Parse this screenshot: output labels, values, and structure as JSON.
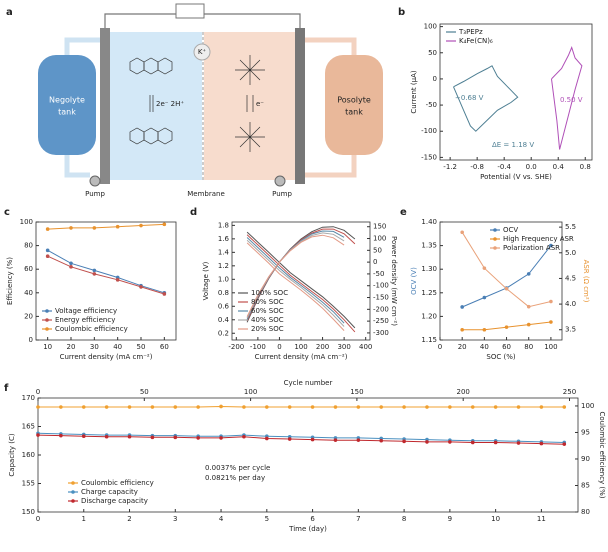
{
  "diagram": {
    "panel": "a",
    "negolyte_tank": [
      "Negolyte",
      "tank"
    ],
    "posolyte_tank": [
      "Posolyte",
      "tank"
    ],
    "pumps": [
      "Pump",
      "Pump"
    ],
    "membrane": "Membrane",
    "ion": "K⁺",
    "left_reaction": "2e⁻ 2H⁺",
    "right_reaction": "e⁻"
  },
  "chart_data": [
    {
      "type": "line",
      "panel": "b",
      "x_label": "Potential (V vs. SHE)",
      "y_label": "Current (μA)",
      "xlim": [
        -1.35,
        0.9
      ],
      "xticks": [
        -1.2,
        -0.8,
        -0.4,
        {
          "value": 0,
          "label": "0.0"
        },
        0.4,
        0.8
      ],
      "ylim": [
        -155,
        105
      ],
      "yticks": [
        -150,
        -100,
        -50,
        0,
        50,
        100
      ],
      "legend": "upper left",
      "series": [
        {
          "name": "T₃PEPz",
          "color": "#4e7f93",
          "x": [
            -1.15,
            -1.0,
            -0.9,
            -0.82,
            -0.7,
            -0.5,
            -0.3,
            -0.2,
            -0.35,
            -0.5,
            -0.58,
            -0.65,
            -0.8,
            -1.0,
            -1.15
          ],
          "values": [
            -15,
            -60,
            -90,
            -100,
            -85,
            -60,
            -45,
            -35,
            -15,
            5,
            25,
            20,
            10,
            -5,
            -15
          ]
        },
        {
          "name": "K₄Fe(CN)₆",
          "color": "#b050b8",
          "x": [
            0.3,
            0.45,
            0.55,
            0.6,
            0.65,
            0.75,
            0.65,
            0.55,
            0.45,
            0.42,
            0.38,
            0.3
          ],
          "values": [
            0,
            20,
            45,
            60,
            40,
            25,
            -20,
            -70,
            -120,
            -135,
            -80,
            0
          ]
        }
      ],
      "annotations": [
        "−0.68 V",
        "0.50 V",
        "ΔE = 1.18 V"
      ]
    },
    {
      "type": "line",
      "panel": "c",
      "x_label": "Current density (mA cm⁻²)",
      "y_label": "Efficiency (%)",
      "x": [
        10,
        20,
        30,
        40,
        50,
        60
      ],
      "xlim": [
        5,
        65
      ],
      "xticks": [
        10,
        20,
        30,
        40,
        50,
        60
      ],
      "ylim": [
        0,
        100
      ],
      "yticks": [
        0,
        20,
        40,
        60,
        80,
        100
      ],
      "legend": "lower left",
      "marker": true,
      "series": [
        {
          "name": "Voltage efficiency",
          "color": "#4a7fb5",
          "values": [
            76,
            65,
            59,
            53,
            46,
            40
          ]
        },
        {
          "name": "Energy efficiency",
          "color": "#c0504d",
          "values": [
            71,
            62,
            56,
            51,
            45,
            39
          ]
        },
        {
          "name": "Coulombic efficiency",
          "color": "#e8922e",
          "values": [
            94,
            95,
            95,
            96,
            97,
            98
          ]
        }
      ]
    },
    {
      "type": "line",
      "panel": "d",
      "x_label": "Current density (mA cm⁻²)",
      "y_label": "Voltage (V)",
      "y2_label": "Power density (mW cm⁻²)",
      "x": [
        -150,
        -100,
        -50,
        0,
        50,
        100,
        150,
        200,
        250,
        300,
        350
      ],
      "xlim": [
        -220,
        420
      ],
      "xticks": [
        -200,
        -100,
        0,
        100,
        200,
        300,
        400
      ],
      "ylim": [
        0.1,
        1.85
      ],
      "yticks": [
        0.2,
        0.4,
        0.6,
        0.8,
        {
          "value": 1,
          "label": "1.0"
        },
        1.2,
        1.4,
        1.6,
        1.8
      ],
      "y2lim": [
        -330,
        170
      ],
      "y2ticks": [
        -300,
        -250,
        -200,
        -150,
        -100,
        -50,
        0,
        50,
        100,
        150
      ],
      "legend": "lower left",
      "series": [
        {
          "name": "100% SOC",
          "color": "#555555",
          "values": [
            1.7,
            1.55,
            1.4,
            1.25,
            1.1,
            0.98,
            0.86,
            0.74,
            0.6,
            0.45,
            0.28
          ]
        },
        {
          "name": "80% SOC",
          "color": "#c0504d",
          "values": [
            1.66,
            1.51,
            1.36,
            1.21,
            1.06,
            0.94,
            0.82,
            0.7,
            0.56,
            0.4,
            0.22
          ]
        },
        {
          "name": "60% SOC",
          "color": "#5a8aa8",
          "values": [
            1.62,
            1.47,
            1.32,
            1.17,
            1.03,
            0.91,
            0.79,
            0.66,
            0.52,
            0.35,
            null
          ]
        },
        {
          "name": "40% SOC",
          "color": "#a9a9a9",
          "values": [
            1.58,
            1.43,
            1.28,
            1.13,
            1.0,
            0.88,
            0.75,
            0.62,
            0.47,
            0.3,
            null
          ]
        },
        {
          "name": "20% SOC",
          "color": "#e39a86",
          "values": [
            1.54,
            1.39,
            1.24,
            1.08,
            0.96,
            0.84,
            0.71,
            0.57,
            0.41,
            0.24,
            null
          ]
        },
        {
          "color": "#555555",
          "axis": "y2",
          "values": [
            -255,
            -155,
            -70,
            0,
            55,
            98,
            129,
            148,
            150,
            135,
            98
          ]
        },
        {
          "color": "#c0504d",
          "axis": "y2",
          "values": [
            -249,
            -151,
            -68,
            0,
            53,
            94,
            123,
            140,
            140,
            120,
            77
          ]
        },
        {
          "color": "#5a8aa8",
          "axis": "y2",
          "values": [
            -243,
            -147,
            -66,
            0,
            52,
            91,
            119,
            132,
            130,
            105,
            null
          ]
        },
        {
          "color": "#a9a9a9",
          "axis": "y2",
          "values": [
            -237,
            -143,
            -64,
            0,
            50,
            88,
            113,
            124,
            118,
            90,
            null
          ]
        },
        {
          "color": "#e39a86",
          "axis": "y2",
          "values": [
            -231,
            -139,
            -62,
            0,
            48,
            84,
            107,
            114,
            103,
            72,
            null
          ]
        }
      ]
    },
    {
      "type": "line",
      "panel": "e",
      "x_label": "SOC (%)",
      "y_label": "OCV (V)",
      "y2_label": "ASR (Ω cm²)",
      "y_label_color": "#4a7fb5",
      "y2_label_color": "#e8922e",
      "x": [
        20,
        40,
        60,
        80,
        100
      ],
      "xlim": [
        0,
        110
      ],
      "xticks": [
        0,
        20,
        40,
        60,
        80,
        100
      ],
      "ylim": [
        1.15,
        1.4
      ],
      "yticks": [
        1.15,
        {
          "value": 1.2,
          "label": "1.20"
        },
        1.25,
        {
          "value": 1.3,
          "label": "1.30"
        },
        1.35,
        {
          "value": 1.4,
          "label": "1.40"
        }
      ],
      "y2lim": [
        3.3,
        5.6
      ],
      "y2ticks": [
        3.5,
        {
          "value": 4,
          "label": "4.0"
        },
        4.5,
        {
          "value": 5,
          "label": "5.0"
        },
        5.5
      ],
      "legend": "upper right",
      "marker": true,
      "series": [
        {
          "name": "OCV",
          "color": "#4a7fb5",
          "values": [
            1.22,
            1.24,
            1.26,
            1.29,
            1.35
          ]
        },
        {
          "name": "High Frequency ASR",
          "color": "#e8922e",
          "axis": "y2",
          "values": [
            3.5,
            3.5,
            3.55,
            3.6,
            3.65
          ]
        },
        {
          "name": "Polarization ASR",
          "color": "#e9a27a",
          "axis": "y2",
          "values": [
            5.4,
            4.7,
            4.3,
            3.95,
            4.05
          ]
        }
      ]
    },
    {
      "type": "line",
      "panel": "f",
      "x_label": "Time (day)",
      "x2_label": "Cycle number",
      "y_label": "Capacity (C)",
      "y2_label": "Coulombic efficiency (%)",
      "x": [
        0,
        0.5,
        1,
        1.5,
        2,
        2.5,
        3,
        3.5,
        4,
        4.5,
        5,
        5.5,
        6,
        6.5,
        7,
        7.5,
        8,
        8.5,
        9,
        9.5,
        10,
        10.5,
        11,
        11.5
      ],
      "xlim": [
        0,
        11.8
      ],
      "xticks": [
        0,
        1,
        2,
        3,
        4,
        5,
        6,
        7,
        8,
        9,
        10,
        11
      ],
      "x2lim": [
        0,
        254
      ],
      "x2ticks": [
        0,
        50,
        100,
        150,
        200,
        250
      ],
      "ylim": [
        150,
        170
      ],
      "yticks": [
        150,
        155,
        160,
        165,
        170
      ],
      "y2lim": [
        80,
        101.5
      ],
      "y2ticks": [
        80,
        85,
        90,
        95,
        100
      ],
      "legend": "lower left",
      "marker": true,
      "series": [
        {
          "name": "Coulombic efficiency",
          "color": "#f0a030",
          "axis": "y2",
          "values": [
            99.8,
            99.8,
            99.8,
            99.8,
            99.8,
            99.8,
            99.8,
            99.8,
            99.9,
            99.8,
            99.8,
            99.8,
            99.8,
            99.8,
            99.8,
            99.8,
            99.8,
            99.8,
            99.8,
            99.8,
            99.8,
            99.8,
            99.8,
            99.8
          ]
        },
        {
          "name": "Charge capacity",
          "color": "#4a90c0",
          "values": [
            163.8,
            163.7,
            163.6,
            163.5,
            163.5,
            163.4,
            163.4,
            163.3,
            163.3,
            163.5,
            163.3,
            163.2,
            163.1,
            163.0,
            163.0,
            162.9,
            162.8,
            162.7,
            162.6,
            162.5,
            162.5,
            162.4,
            162.3,
            162.2
          ]
        },
        {
          "name": "Discharge capacity",
          "color": "#c0282d",
          "values": [
            163.5,
            163.4,
            163.3,
            163.2,
            163.2,
            163.1,
            163.1,
            163.0,
            163.0,
            163.2,
            162.9,
            162.8,
            162.7,
            162.6,
            162.6,
            162.5,
            162.4,
            162.3,
            162.3,
            162.2,
            162.2,
            162.1,
            162.0,
            161.9
          ]
        }
      ],
      "annotations": [
        "0.0037% per cycle",
        "0.0821% per day"
      ]
    }
  ]
}
